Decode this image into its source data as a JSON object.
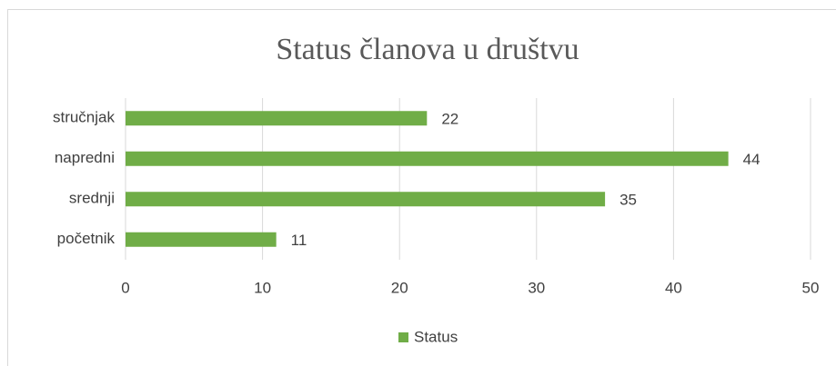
{
  "chart_data": {
    "type": "bar",
    "orientation": "horizontal",
    "title": "Status članova u društvu",
    "categories": [
      "stručnjak",
      "napredni",
      "srednji",
      "početnik"
    ],
    "series": [
      {
        "name": "Status",
        "color": "#70ad47",
        "values": [
          22,
          44,
          35,
          11
        ]
      }
    ],
    "xlim": [
      0,
      50
    ],
    "xticks": [
      0,
      10,
      20,
      30,
      40,
      50
    ],
    "grid": true,
    "legend": "bottom"
  }
}
